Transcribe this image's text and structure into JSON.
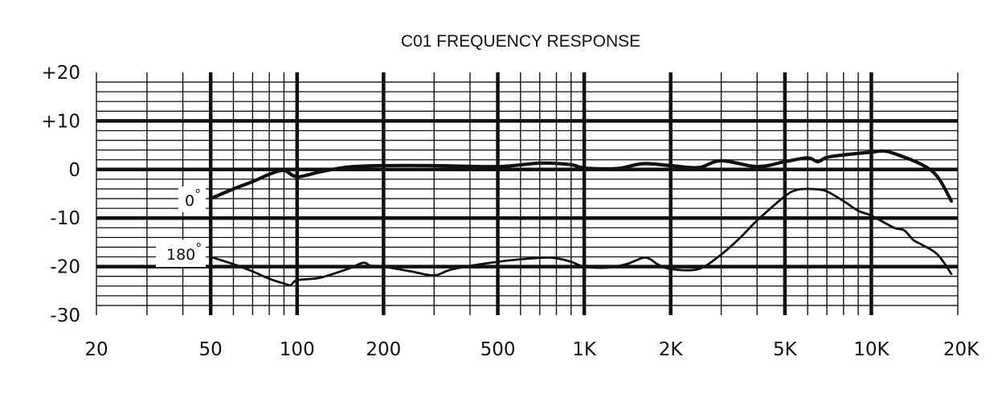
{
  "chart_data": {
    "type": "line",
    "title": "C01 FREQUENCY RESPONSE",
    "xlabel": "",
    "ylabel": "",
    "x_scale": "log",
    "xlim": [
      20,
      20000
    ],
    "ylim": [
      -30,
      20
    ],
    "grid": true,
    "x_tick_values": [
      20,
      50,
      100,
      200,
      500,
      1000,
      2000,
      5000,
      10000,
      20000
    ],
    "x_tick_labels": [
      "20",
      "50",
      "100",
      "200",
      "500",
      "1K",
      "2K",
      "5K",
      "10K",
      "20K"
    ],
    "y_tick_values": [
      20,
      10,
      0,
      -10,
      -20,
      -30
    ],
    "y_tick_labels": [
      "+20",
      "+10",
      "0",
      "-10",
      "-20",
      "-30"
    ],
    "series": [
      {
        "name": "0°",
        "x": [
          50,
          60,
          70,
          80,
          90,
          100,
          120,
          150,
          200,
          300,
          500,
          700,
          900,
          1000,
          1300,
          1600,
          2000,
          2500,
          3000,
          4000,
          5000,
          6000,
          6500,
          7000,
          8000,
          10000,
          11000,
          12000,
          15000,
          17000,
          19000
        ],
        "y": [
          -6,
          -4,
          -2.5,
          -1,
          -0.2,
          -1.5,
          -0.5,
          0.5,
          0.8,
          0.8,
          0.6,
          1.3,
          1.0,
          0.3,
          0.2,
          1.2,
          0.8,
          0.4,
          1.8,
          0.6,
          1.6,
          2.4,
          1.6,
          2.5,
          3.0,
          3.6,
          3.8,
          3.3,
          1.0,
          -1.5,
          -6.5
        ]
      },
      {
        "name": "180°",
        "x": [
          50,
          60,
          70,
          80,
          90,
          95,
          100,
          120,
          150,
          170,
          180,
          200,
          250,
          300,
          350,
          500,
          700,
          800,
          900,
          1000,
          1200,
          1400,
          1600,
          1700,
          1800,
          2000,
          2500,
          3000,
          3500,
          4000,
          5000,
          5500,
          6000,
          6500,
          7000,
          8000,
          9000,
          10000,
          12000,
          13000,
          14000,
          15000,
          17000,
          19000
        ],
        "y": [
          -18,
          -19.5,
          -21,
          -22.5,
          -23.5,
          -23.8,
          -22.8,
          -22.3,
          -20.5,
          -19.2,
          -19.8,
          -20,
          -21,
          -21.8,
          -20.5,
          -19,
          -18.2,
          -18.3,
          -19,
          -20,
          -20.2,
          -19.5,
          -18.2,
          -18.5,
          -19.5,
          -20.5,
          -20.5,
          -17.5,
          -14,
          -10.5,
          -5.5,
          -4.2,
          -4,
          -4.1,
          -4.5,
          -6.5,
          -8.5,
          -9.5,
          -12,
          -12.5,
          -14.5,
          -15.5,
          -17.5,
          -21.5
        ]
      }
    ],
    "curve_labels": [
      "0°",
      "180°"
    ]
  }
}
